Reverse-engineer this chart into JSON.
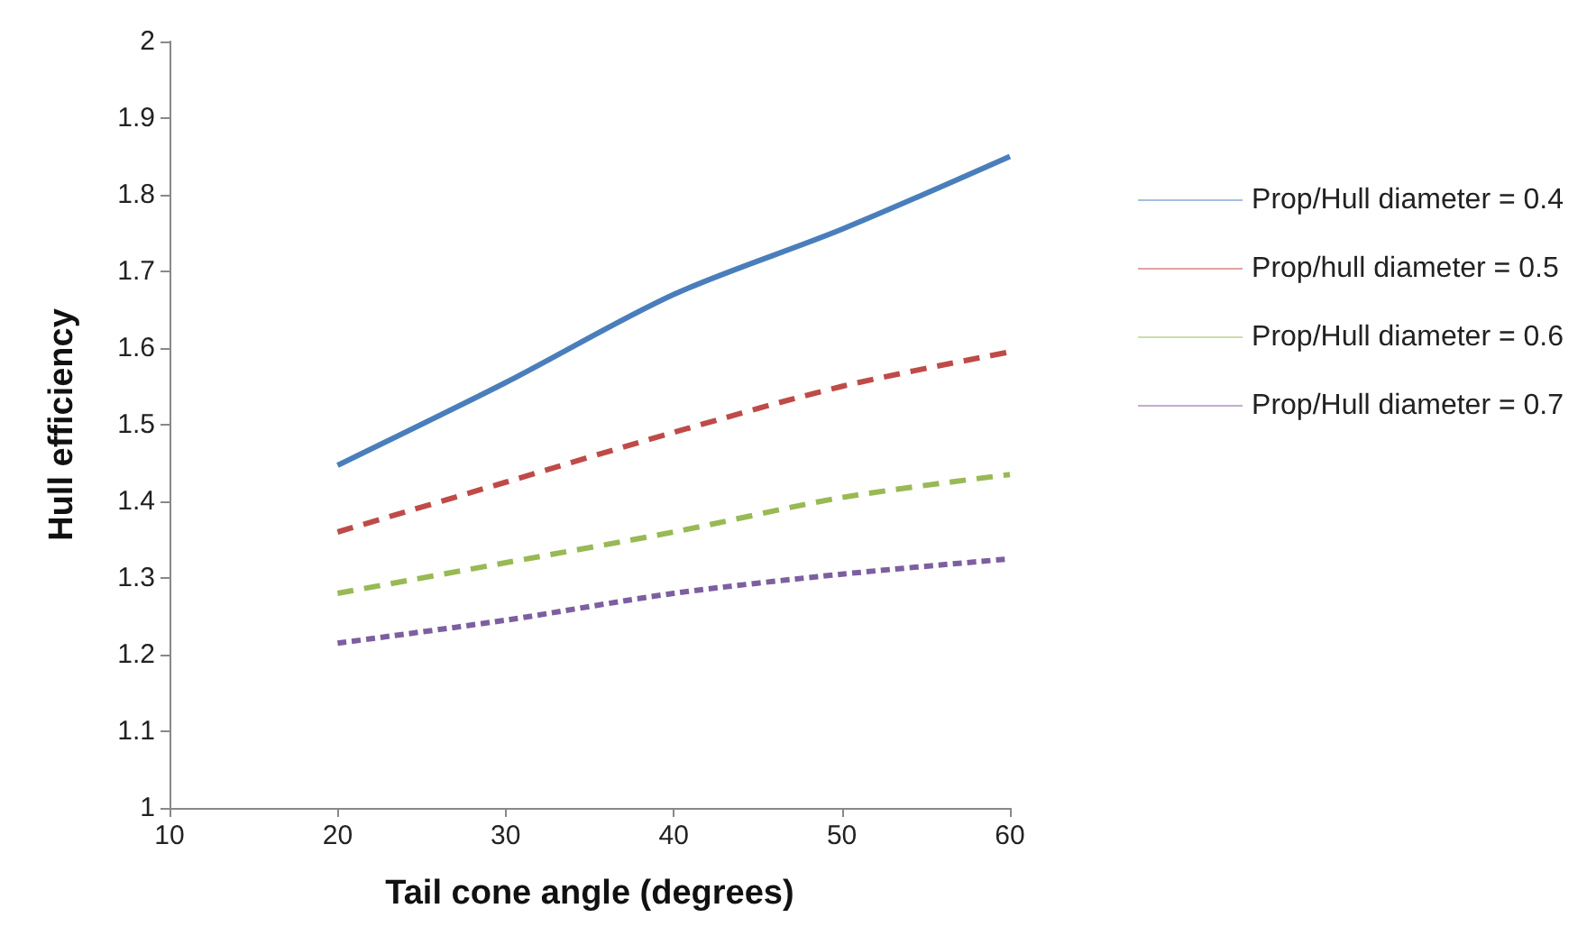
{
  "chart_data": {
    "type": "line",
    "xlabel": "Tail cone angle (degrees)",
    "ylabel": "Hull efficiency",
    "x": [
      20,
      30,
      40,
      50,
      60
    ],
    "series": [
      {
        "name": "Prop/Hull diameter = 0.4",
        "color": "#4a7ebb",
        "line_style": "solid",
        "values": [
          1.447,
          1.555,
          1.67,
          1.755,
          1.85
        ]
      },
      {
        "name": "Prop/hull diameter = 0.5",
        "color": "#be4b48",
        "line_style": "dashed",
        "values": [
          1.36,
          1.425,
          1.49,
          1.55,
          1.595
        ]
      },
      {
        "name": "Prop/Hull diameter = 0.6",
        "color": "#98b954",
        "line_style": "dashed",
        "values": [
          1.28,
          1.32,
          1.36,
          1.405,
          1.435
        ]
      },
      {
        "name": "Prop/Hull diameter = 0.7",
        "color": "#7d5fa0",
        "line_style": "dotted",
        "values": [
          1.215,
          1.245,
          1.28,
          1.305,
          1.325
        ]
      }
    ],
    "xlim": [
      10,
      60
    ],
    "xticks": [
      10,
      20,
      30,
      40,
      50,
      60
    ],
    "ylim": [
      1,
      2
    ],
    "yticks": [
      1,
      1.1,
      1.2,
      1.3,
      1.4,
      1.5,
      1.6,
      1.7,
      1.8,
      1.9,
      2
    ],
    "grid": false,
    "legend": "right",
    "marker": "none"
  }
}
